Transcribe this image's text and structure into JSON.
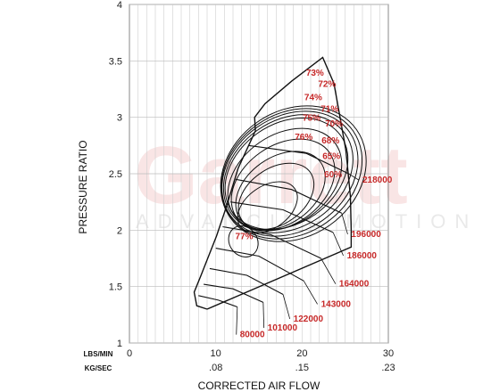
{
  "watermark": {
    "brand": "Garrett",
    "tagline": "ADVANCING MOTION"
  },
  "chart_data": {
    "type": "line",
    "title": "",
    "xlabel": "CORRECTED AIR FLOW",
    "ylabel": "PRESSURE RATIO",
    "xlim": [
      0,
      30
    ],
    "ylim": [
      1,
      4
    ],
    "grid": true,
    "x_ticks_lbs": [
      {
        "value": 0,
        "label": "0"
      },
      {
        "value": 10,
        "label": "10"
      },
      {
        "value": 20,
        "label": "20"
      },
      {
        "value": 30,
        "label": "30"
      }
    ],
    "x_ticks_kg": [
      {
        "value": 10,
        "label": ".08"
      },
      {
        "value": 20,
        "label": ".15"
      },
      {
        "value": 30,
        "label": ".23"
      }
    ],
    "x_unit_labels": [
      "LBS/MIN",
      "KG/SEC"
    ],
    "y_ticks": [
      {
        "value": 1,
        "label": "1"
      },
      {
        "value": 1.5,
        "label": "1.5"
      },
      {
        "value": 2,
        "label": "2"
      },
      {
        "value": 2.5,
        "label": "2.5"
      },
      {
        "value": 3,
        "label": "3"
      },
      {
        "value": 3.5,
        "label": "3.5"
      },
      {
        "value": 4,
        "label": "4"
      }
    ],
    "boundary": [
      [
        9,
        1.3
      ],
      [
        7.8,
        1.33
      ],
      [
        7.5,
        1.45
      ],
      [
        8.3,
        1.6
      ],
      [
        10.1,
        1.95
      ],
      [
        11.2,
        2.2
      ],
      [
        12.6,
        2.55
      ],
      [
        14.6,
        2.88
      ],
      [
        14.5,
        3.0
      ],
      [
        15.7,
        3.12
      ],
      [
        18.8,
        3.32
      ],
      [
        22.4,
        3.53
      ],
      [
        23.7,
        3.3
      ],
      [
        24.4,
        3.0
      ],
      [
        25.1,
        2.7
      ],
      [
        25.6,
        2.3
      ],
      [
        25.7,
        2.0
      ],
      [
        25.7,
        1.85
      ]
    ],
    "speed_lines": [
      {
        "label": "80000",
        "points": [
          [
            8.0,
            1.42
          ],
          [
            10.3,
            1.38
          ],
          [
            12.5,
            1.32
          ]
        ],
        "label_at": [
          12.8,
          1.05
        ]
      },
      {
        "label": "101000",
        "points": [
          [
            8.6,
            1.52
          ],
          [
            12.0,
            1.48
          ],
          [
            15.5,
            1.36
          ]
        ],
        "label_at": [
          16.0,
          1.11
        ]
      },
      {
        "label": "122000",
        "points": [
          [
            9.3,
            1.66
          ],
          [
            13.6,
            1.6
          ],
          [
            17.8,
            1.43
          ]
        ],
        "label_at": [
          19.0,
          1.19
        ]
      },
      {
        "label": "143000",
        "points": [
          [
            10.0,
            1.84
          ],
          [
            15.0,
            1.77
          ],
          [
            20.2,
            1.55
          ]
        ],
        "label_at": [
          22.2,
          1.32
        ]
      },
      {
        "label": "164000",
        "points": [
          [
            10.8,
            2.03
          ],
          [
            16.4,
            1.96
          ],
          [
            22.2,
            1.75
          ]
        ],
        "label_at": [
          24.3,
          1.5
        ]
      },
      {
        "label": "186000",
        "points": [
          [
            11.7,
            2.25
          ],
          [
            17.8,
            2.18
          ],
          [
            23.6,
            1.98
          ]
        ],
        "label_at": [
          25.2,
          1.75
        ]
      },
      {
        "label": "196000",
        "points": [
          [
            12.3,
            2.45
          ],
          [
            18.8,
            2.36
          ],
          [
            24.6,
            2.15
          ]
        ],
        "label_at": [
          25.7,
          1.94
        ]
      },
      {
        "label": "218000",
        "points": [
          [
            13.8,
            2.75
          ],
          [
            20.5,
            2.68
          ],
          [
            25.4,
            2.5
          ]
        ],
        "label_at": [
          27.0,
          2.42
        ]
      }
    ],
    "efficiency_islands": [
      {
        "label": "77%",
        "center": [
          13.2,
          1.9
        ],
        "rx": 2.6,
        "ry": 0.32,
        "rot": -35,
        "label_at": [
          13.3,
          1.92
        ]
      },
      {
        "label": "76%",
        "center": [
          16.0,
          2.2
        ],
        "rx": 6.2,
        "ry": 0.42,
        "rot": -35,
        "label_at": [
          20.2,
          2.8
        ]
      },
      {
        "label": "75%",
        "center": [
          17.0,
          2.3
        ],
        "rx": 7.8,
        "ry": 0.55,
        "rot": -35,
        "label_at": [
          21.1,
          2.97
        ]
      },
      {
        "label": "74%",
        "center": [
          17.5,
          2.35
        ],
        "rx": 9.2,
        "ry": 0.66,
        "rot": -35,
        "label_at": [
          21.3,
          3.15
        ]
      },
      {
        "label": "73%",
        "center": [
          17.8,
          2.4
        ],
        "rx": 10.6,
        "ry": 0.78,
        "rot": -35,
        "label_at": [
          21.5,
          3.37
        ]
      },
      {
        "label": "72%",
        "center": [
          18.0,
          2.45
        ],
        "rx": 11.6,
        "ry": 0.88,
        "rot": -35,
        "label_at": [
          22.9,
          3.27
        ]
      },
      {
        "label": "71%",
        "center": [
          18.2,
          2.5
        ],
        "rx": 12.4,
        "ry": 0.98,
        "rot": -35,
        "label_at": [
          23.2,
          3.05
        ]
      },
      {
        "label": "70%",
        "center": [
          18.4,
          2.5
        ],
        "rx": 13.0,
        "ry": 1.05,
        "rot": -35,
        "label_at": [
          23.7,
          2.92
        ]
      },
      {
        "label": "68%",
        "center": [
          18.6,
          2.5
        ],
        "rx": 13.6,
        "ry": 1.12,
        "rot": -35,
        "label_at": [
          23.3,
          2.77
        ]
      },
      {
        "label": "65%",
        "center": [
          18.8,
          2.5
        ],
        "rx": 14.0,
        "ry": 1.18,
        "rot": -35,
        "label_at": [
          23.4,
          2.63
        ]
      },
      {
        "label": "60%",
        "center": [
          19.0,
          2.5
        ],
        "rx": 14.4,
        "ry": 1.24,
        "rot": -35,
        "label_at": [
          23.6,
          2.47
        ]
      }
    ]
  }
}
